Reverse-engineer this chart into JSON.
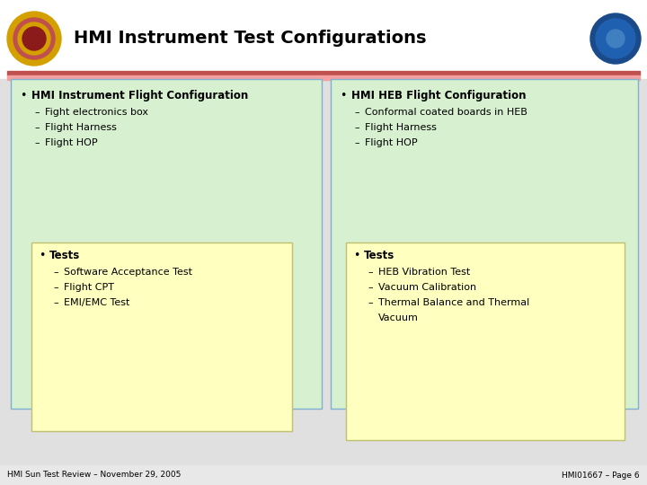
{
  "title": "HMI Instrument Test Configurations",
  "title_fontsize": 14,
  "background_color": "#ffffff",
  "header_bg": "#f5f5f5",
  "header_line1_color": "#c0504d",
  "header_line2_color": "#f4a0a0",
  "slide_bg": "#e8e8e8",
  "left_box_bg": "#d6f0d0",
  "left_box_border": "#7fb0d0",
  "right_box_bg": "#d6f0d0",
  "right_box_border": "#7fb0d0",
  "yellow_box_bg": "#ffffc0",
  "yellow_box_border": "#c0c070",
  "left_title": "HMI Instrument Flight Configuration",
  "left_items": [
    "Fight electronics box",
    "Flight Harness",
    "Flight HOP"
  ],
  "right_title": "HMI HEB Flight Configuration",
  "right_items": [
    "Conformal coated boards in HEB",
    "Flight Harness",
    "Flight HOP"
  ],
  "left_tests_title": "Tests",
  "left_tests_items": [
    "Software Acceptance Test",
    "Flight CPT",
    "EMI/EMC Test"
  ],
  "right_tests_title": "Tests",
  "right_tests_items_line1": [
    "HEB Vibration Test",
    "Vacuum Calibration",
    "Thermal Balance and Thermal"
  ],
  "right_tests_item_extra": "Vacuum",
  "footer_left": "HMI Sun Test Review – November 29, 2005",
  "footer_right": "HMI01667 – Page 6"
}
